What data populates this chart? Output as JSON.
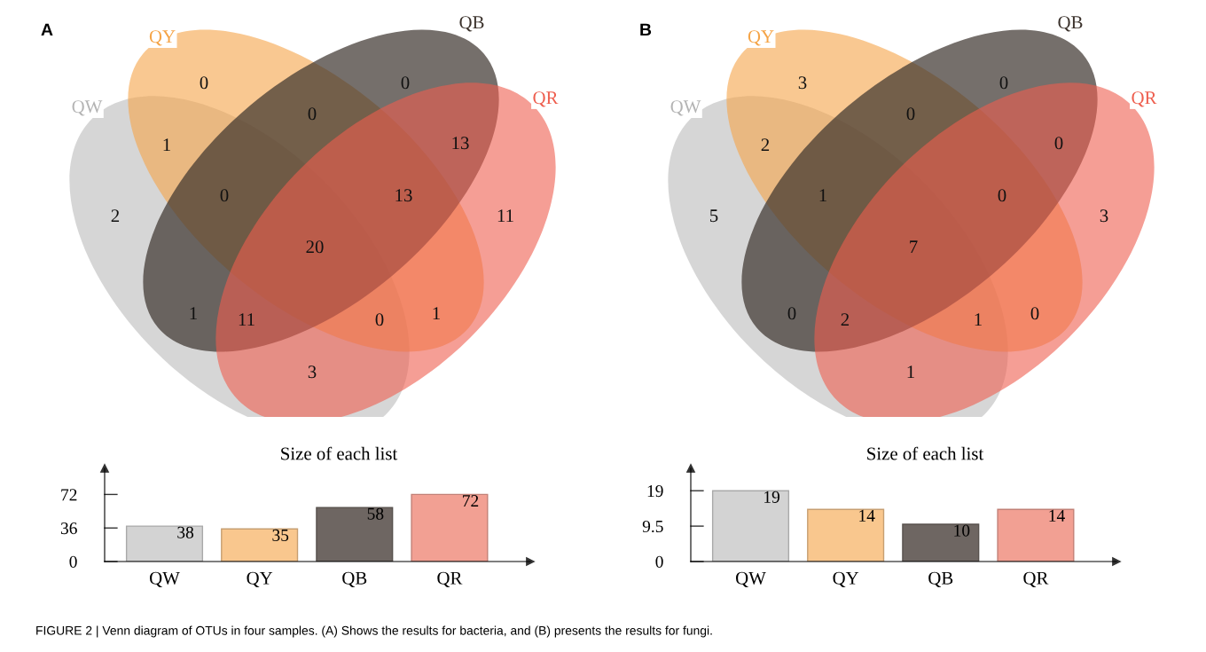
{
  "chart_data": [
    {
      "type": "other",
      "title": "A",
      "categories": [
        "QW",
        "QY",
        "QB",
        "QR"
      ],
      "colors": [
        "#b4b4b4",
        "#f5a447",
        "#3b322c",
        "#ee5e4e"
      ],
      "annotations": [
        "2",
        "0",
        "0",
        "11",
        "1",
        "0",
        "13",
        "3",
        "1",
        "1",
        "0",
        "13",
        "11",
        "0",
        "20"
      ]
    },
    {
      "type": "bar",
      "title": "Size of each list",
      "categories": [
        "QW",
        "QY",
        "QB",
        "QR"
      ],
      "values": [
        38,
        35,
        58,
        72
      ],
      "colors": [
        "#d3d3d3",
        "#f9c78e",
        "#6e6662",
        "#f2a093"
      ],
      "ylim": [
        0,
        100
      ],
      "yticks": [
        0,
        36,
        72
      ],
      "data_labels": true
    },
    {
      "type": "other",
      "title": "B",
      "categories": [
        "QW",
        "QY",
        "QB",
        "QR"
      ],
      "colors": [
        "#b4b4b4",
        "#f5a447",
        "#3b322c",
        "#ee5e4e"
      ],
      "annotations": [
        "5",
        "3",
        "0",
        "3",
        "2",
        "0",
        "0",
        "1",
        "0",
        "0",
        "1",
        "0",
        "2",
        "1",
        "7"
      ]
    },
    {
      "type": "bar",
      "title": "Size of each list",
      "categories": [
        "QW",
        "QY",
        "QB",
        "QR"
      ],
      "values": [
        19,
        14,
        10,
        14
      ],
      "colors": [
        "#d3d3d3",
        "#f9c78e",
        "#6e6662",
        "#f2a093"
      ],
      "ylim": [
        0,
        25
      ],
      "yticks": [
        0,
        9.5,
        19
      ],
      "data_labels": true,
      "annotations": [
        "FIGURE 2 | Venn diagram of OTUs in four samples. (A) Shows the results for bacteria, and (B) presents the results for fungi."
      ]
    }
  ]
}
